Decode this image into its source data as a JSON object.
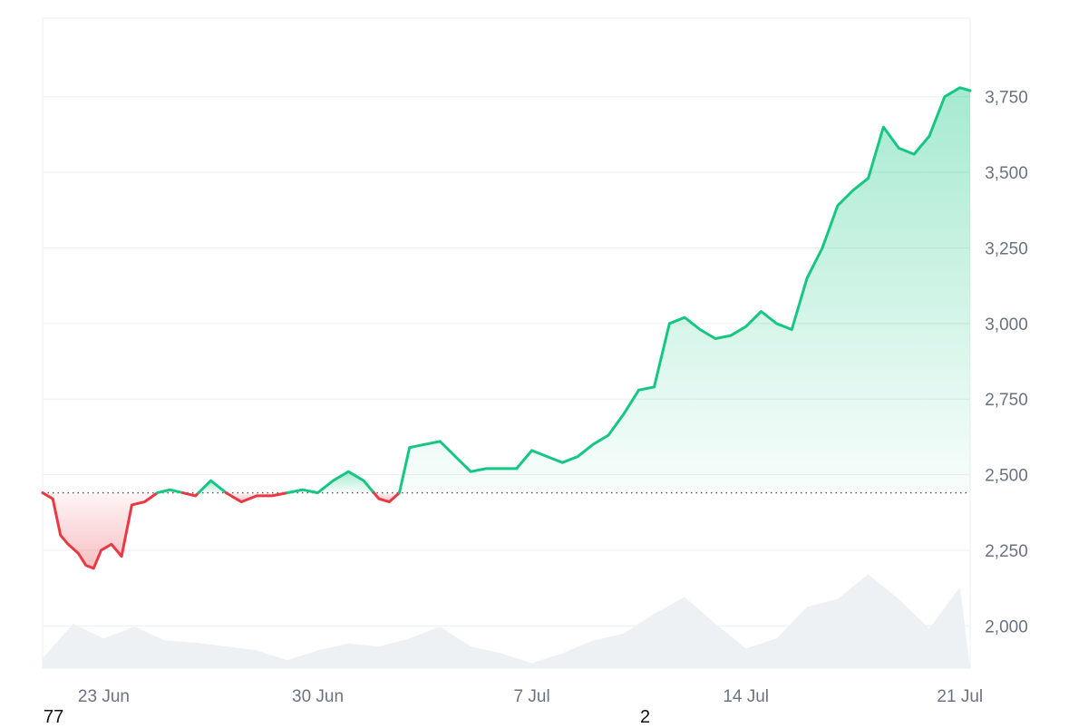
{
  "chart_data": {
    "type": "line",
    "title": "",
    "xlabel": "",
    "ylabel": "",
    "baseline": 2440,
    "ylim": [
      1860,
      4010
    ],
    "y_ticks": [
      2000,
      2250,
      2500,
      2750,
      3000,
      3250,
      3500,
      3750
    ],
    "y_tick_labels": [
      "2,000",
      "2,250",
      "2,500",
      "2,750",
      "3,000",
      "3,250",
      "3,500",
      "3,750"
    ],
    "x_range": [
      "2025-06-21",
      "2025-07-21"
    ],
    "x_ticks": [
      "2025-06-23",
      "2025-06-30",
      "2025-07-07",
      "2025-07-14",
      "2025-07-21"
    ],
    "x_tick_labels": [
      "23 Jun",
      "30 Jun",
      "7 Jul",
      "14 Jul",
      "21 Jul"
    ],
    "grid": true,
    "colors": {
      "up_line": "#16c784",
      "up_fill": "#16c784",
      "down_line": "#ea3943",
      "down_fill": "#ea3943",
      "volume_fill": "#eef1f4",
      "grid": "#eceff2",
      "axis_text": "#6b7280"
    },
    "series": [
      {
        "x": [
          "2025-06-21 00:00",
          "2025-06-21 08:00",
          "2025-06-21 14:00",
          "2025-06-21 20:00",
          "2025-06-22 04:00",
          "2025-06-22 10:00",
          "2025-06-22 16:00",
          "2025-06-22 22:00",
          "2025-06-23 06:00",
          "2025-06-23 14:00",
          "2025-06-23 22:00",
          "2025-06-24 08:00",
          "2025-06-24 18:00",
          "2025-06-25 04:00",
          "2025-06-25 14:00",
          "2025-06-26 00:00",
          "2025-06-26 12:00",
          "2025-06-27 00:00",
          "2025-06-27 12:00",
          "2025-06-28 00:00",
          "2025-06-28 12:00",
          "2025-06-29 00:00",
          "2025-06-29 12:00",
          "2025-06-30 00:00",
          "2025-06-30 12:00",
          "2025-07-01 00:00",
          "2025-07-01 12:00",
          "2025-07-02 00:00",
          "2025-07-02 08:00",
          "2025-07-02 16:00",
          "2025-07-03 00:00",
          "2025-07-03 12:00",
          "2025-07-04 00:00",
          "2025-07-04 12:00",
          "2025-07-05 00:00",
          "2025-07-05 12:00",
          "2025-07-06 00:00",
          "2025-07-06 12:00",
          "2025-07-07 00:00",
          "2025-07-07 12:00",
          "2025-07-08 00:00",
          "2025-07-08 12:00",
          "2025-07-09 00:00",
          "2025-07-09 12:00",
          "2025-07-10 00:00",
          "2025-07-10 12:00",
          "2025-07-11 00:00",
          "2025-07-11 12:00",
          "2025-07-12 00:00",
          "2025-07-12 12:00",
          "2025-07-13 00:00",
          "2025-07-13 12:00",
          "2025-07-14 00:00",
          "2025-07-14 12:00",
          "2025-07-15 00:00",
          "2025-07-15 12:00",
          "2025-07-16 00:00",
          "2025-07-16 12:00",
          "2025-07-17 00:00",
          "2025-07-17 12:00",
          "2025-07-18 00:00",
          "2025-07-18 12:00",
          "2025-07-19 00:00",
          "2025-07-19 12:00",
          "2025-07-20 00:00",
          "2025-07-20 12:00",
          "2025-07-21 00:00",
          "2025-07-21 08:00"
        ],
        "y": [
          2440,
          2420,
          2300,
          2270,
          2240,
          2200,
          2190,
          2250,
          2270,
          2230,
          2400,
          2410,
          2440,
          2450,
          2440,
          2430,
          2480,
          2440,
          2410,
          2430,
          2430,
          2440,
          2450,
          2440,
          2480,
          2510,
          2480,
          2420,
          2410,
          2440,
          2590,
          2600,
          2610,
          2560,
          2510,
          2520,
          2520,
          2520,
          2580,
          2560,
          2540,
          2560,
          2600,
          2630,
          2700,
          2780,
          2790,
          3000,
          3020,
          2980,
          2950,
          2960,
          2990,
          3040,
          3000,
          2980,
          3150,
          3250,
          3390,
          3440,
          3480,
          3650,
          3580,
          3560,
          3620,
          3750,
          3780,
          3770
        ]
      }
    ],
    "volume": {
      "x": [
        "2025-06-21",
        "2025-06-22",
        "2025-06-23",
        "2025-06-24",
        "2025-06-25",
        "2025-06-26",
        "2025-06-27",
        "2025-06-28",
        "2025-06-29",
        "2025-06-30",
        "2025-07-01",
        "2025-07-02",
        "2025-07-03",
        "2025-07-04",
        "2025-07-05",
        "2025-07-06",
        "2025-07-07",
        "2025-07-08",
        "2025-07-09",
        "2025-07-10",
        "2025-07-11",
        "2025-07-12",
        "2025-07-13",
        "2025-07-14",
        "2025-07-15",
        "2025-07-16",
        "2025-07-17",
        "2025-07-18",
        "2025-07-19",
        "2025-07-20",
        "2025-07-21"
      ],
      "values": [
        0.1,
        0.45,
        0.3,
        0.42,
        0.28,
        0.26,
        0.22,
        0.18,
        0.08,
        0.18,
        0.25,
        0.22,
        0.3,
        0.42,
        0.22,
        0.15,
        0.05,
        0.15,
        0.28,
        0.35,
        0.55,
        0.72,
        0.45,
        0.2,
        0.3,
        0.62,
        0.7,
        0.95,
        0.7,
        0.4,
        0.82
      ]
    }
  },
  "stray_text": [
    "77",
    "2"
  ]
}
